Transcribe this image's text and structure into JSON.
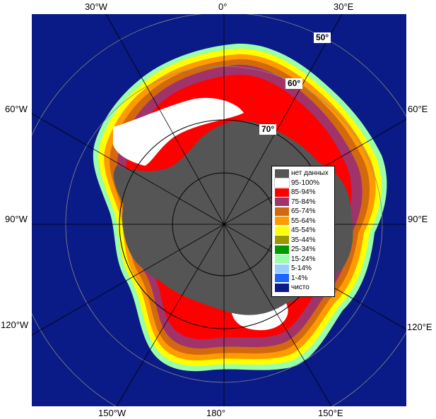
{
  "map": {
    "ocean_color": "#0a1a86",
    "land_color": "#555555",
    "longitude_labels": {
      "top_left": "30°W",
      "top_center": "0°",
      "top_right": "30°E",
      "left_upper": "60°W",
      "right_upper": "60°E",
      "left_middle": "90°W",
      "right_middle": "90°E",
      "left_lower": "120°W",
      "right_lower": "120°E",
      "bottom_left": "150°W",
      "bottom_center": "180°",
      "bottom_right": "150°E"
    },
    "latitude_labels": {
      "lat50": "50°",
      "lat60": "60°",
      "lat70": "70°"
    }
  },
  "legend": {
    "items": [
      {
        "label": "нет данных",
        "color": "#555555"
      },
      {
        "label": "95-100%",
        "color": "#ffffff"
      },
      {
        "label": "85-94%",
        "color": "#ff0000"
      },
      {
        "label": "75-84%",
        "color": "#a0336a"
      },
      {
        "label": "65-74%",
        "color": "#d2690e"
      },
      {
        "label": "55-64%",
        "color": "#ff9a00"
      },
      {
        "label": "45-54%",
        "color": "#ffff00"
      },
      {
        "label": "35-44%",
        "color": "#9a9a00"
      },
      {
        "label": "25-34%",
        "color": "#009a00"
      },
      {
        "label": "15-24%",
        "color": "#99ffaa"
      },
      {
        "label": "5-14%",
        "color": "#99ccff"
      },
      {
        "label": "1-4%",
        "color": "#1a66ff"
      },
      {
        "label": "чисто",
        "color": "#0a1a86"
      }
    ]
  }
}
